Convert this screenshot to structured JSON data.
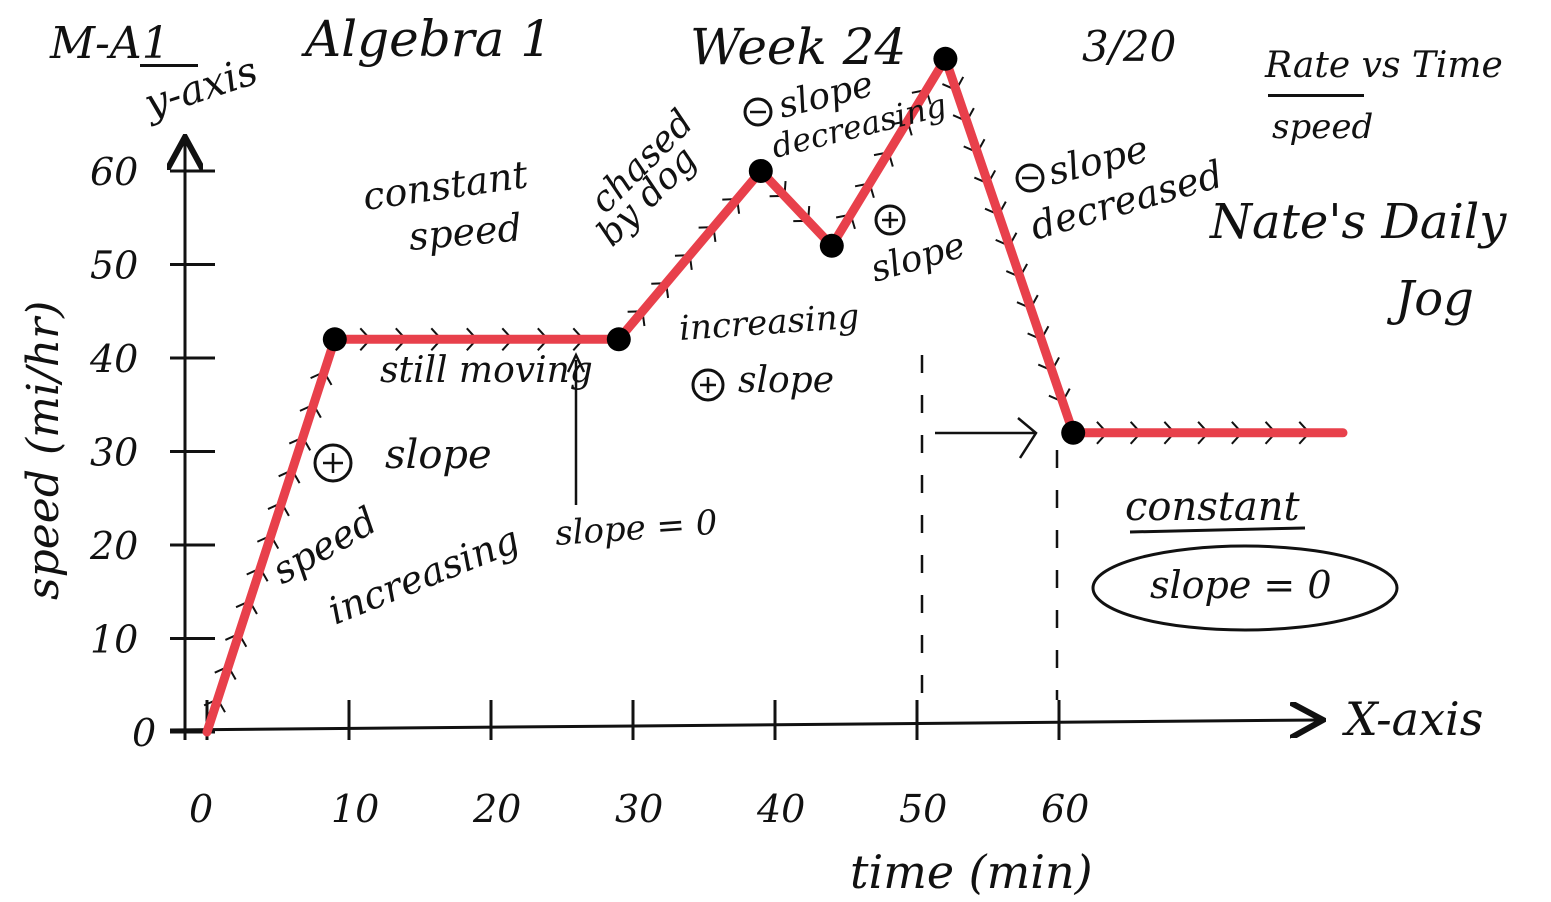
{
  "header": {
    "course_code": "M-A1",
    "course_name": "Algebra 1",
    "week": "Week 24",
    "date": "3/20",
    "rate_vs_time": "Rate vs Time",
    "rate_sub": "speed",
    "title_line1": "Nate's Daily",
    "title_line2": "Jog"
  },
  "chart_data": {
    "type": "line",
    "title": "Nate's Daily Jog",
    "xlabel": "time (min)",
    "ylabel": "speed (mi/hr)",
    "x_axis_name": "X-axis",
    "y_axis_name": "y-axis",
    "xlim": [
      0,
      80
    ],
    "ylim": [
      0,
      65
    ],
    "x_ticks": [
      0,
      10,
      20,
      30,
      40,
      50,
      60
    ],
    "x_tick_labels": [
      "0",
      "10",
      "20",
      "30",
      "40",
      "50",
      "60"
    ],
    "y_ticks": [
      0,
      10,
      20,
      30,
      40,
      50,
      60
    ],
    "y_tick_labels": [
      "0",
      "10",
      "20",
      "30",
      "40",
      "50",
      "60"
    ],
    "series": [
      {
        "x": [
          0,
          9,
          29,
          39,
          44,
          52,
          61,
          80
        ],
        "y": [
          0,
          42,
          42,
          60,
          52,
          72,
          32,
          32
        ],
        "markers_at_index": [
          1,
          2,
          3,
          4,
          5,
          6
        ],
        "color": "#e8404b"
      }
    ],
    "annotations": {
      "pos_slope_1": "slope",
      "speed_increasing_1": "speed",
      "speed_increasing_2": "increasing",
      "constant_speed_1": "constant",
      "constant_speed_2": "speed",
      "still_moving": "still moving",
      "slope_zero": "slope = 0",
      "chased_1": "chased",
      "chased_2": "by dog",
      "incr_pos_1": "increasing",
      "incr_pos_2": "slope",
      "neg_slope_dec_1": "slope",
      "neg_slope_dec_2": "decreasing",
      "pos_slope_2": "slope",
      "neg_slope_decreased_1": "slope",
      "neg_slope_decreased_2": "decreased",
      "constant_2": "constant",
      "slope_zero_2": "slope = 0"
    }
  }
}
